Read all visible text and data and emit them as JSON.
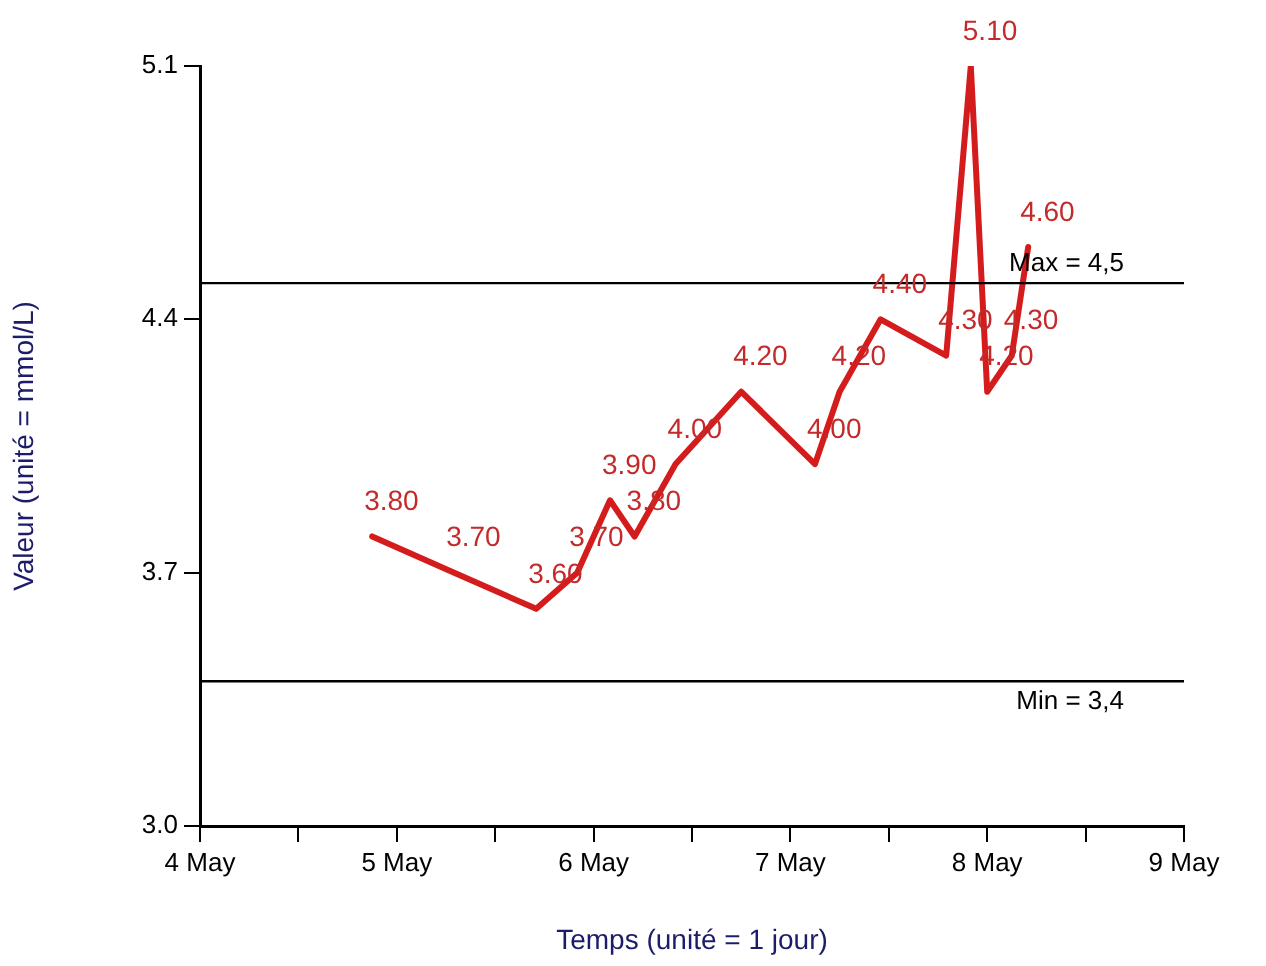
{
  "chart_data": {
    "type": "line",
    "xlabel": "Temps (unité = 1 jour)",
    "ylabel": "Valeur (unité = mmol/L)",
    "x": [
      "--05-04T21:00",
      "--05-05T07:00",
      "--05-05T17:00",
      "--05-05T22:00",
      "--05-06T02:00",
      "--05-06T05:00",
      "--05-06T10:00",
      "--05-06T18:00",
      "--05-07T03:00",
      "--05-07T06:00",
      "--05-07T11:00",
      "--05-07T19:00",
      "--05-07T22:00",
      "--05-08T00:00",
      "--05-08T03:00",
      "--05-08T05:00"
    ],
    "series": [
      {
        "color": "#d41c1c",
        "values": [
          3.8,
          3.7,
          3.6,
          3.7,
          3.9,
          3.8,
          4.0,
          4.2,
          4.0,
          4.2,
          4.4,
          4.3,
          5.1,
          4.2,
          4.3,
          4.6
        ],
        "value_labels": [
          "3.80",
          "3.70",
          "3.60",
          "3.70",
          "3.90",
          "3.80",
          "4.00",
          "4.20",
          "4.00",
          "4.20",
          "4.40",
          "4.30",
          "5.10",
          "4.20",
          "4.30",
          "4.60"
        ]
      }
    ],
    "xlim": [
      "--05-04",
      "--05-09"
    ],
    "xticks": [
      {
        "value": "--05-04",
        "label": "4 May"
      },
      {
        "value": "--05-04T12:00",
        "label": null
      },
      {
        "value": "--05-05",
        "label": "5 May"
      },
      {
        "value": "--05-05T12:00",
        "label": null
      },
      {
        "value": "--05-06",
        "label": "6 May"
      },
      {
        "value": "--05-06T12:00",
        "label": null
      },
      {
        "value": "--05-07",
        "label": "7 May"
      },
      {
        "value": "--05-07T12:00",
        "label": null
      },
      {
        "value": "--05-08",
        "label": "8 May"
      },
      {
        "value": "--05-08T12:00",
        "label": null
      },
      {
        "value": "--05-09",
        "label": "9 May"
      }
    ],
    "ylim": [
      3.0,
      5.1
    ],
    "yticks": [
      {
        "value": 3.0,
        "label": "3.0"
      },
      {
        "value": 3.7,
        "label": "3.7"
      },
      {
        "value": 4.4,
        "label": "4.4"
      },
      {
        "value": 5.1,
        "label": "5.1"
      }
    ],
    "ref_lines": [
      {
        "axis": "y",
        "value": 4.5,
        "label": "Max = 4,5",
        "color": "#000000"
      },
      {
        "axis": "y",
        "value": 3.4,
        "label": "Min = 3,4",
        "color": "#000000"
      }
    ],
    "grid": false,
    "legend": false,
    "marker": "none",
    "line_style": "solid"
  }
}
